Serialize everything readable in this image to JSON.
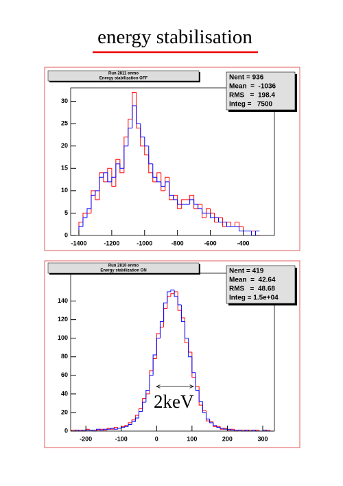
{
  "title": "energy stabilisation",
  "chart_data": [
    {
      "type": "histogram",
      "title_box": [
        "Run 2811 enmo",
        "Energy stabilization OFF"
      ],
      "stats": [
        "Nent = 936",
        "Mean  =  -1036",
        "RMS   =  198.4",
        "Integ =   7500"
      ],
      "bins": [
        -1400,
        -1375,
        -1350,
        -1325,
        -1300,
        -1275,
        -1250,
        -1225,
        -1200,
        -1175,
        -1150,
        -1125,
        -1100,
        -1075,
        -1050,
        -1025,
        -1000,
        -975,
        -950,
        -925,
        -900,
        -875,
        -850,
        -825,
        -800,
        -775,
        -750,
        -725,
        -700,
        -675,
        -650,
        -625,
        -600,
        -575,
        -550,
        -525,
        -500,
        -475,
        -450,
        -425,
        -400,
        -375,
        -350,
        -325,
        -300
      ],
      "series": [
        {
          "color": "#ff0000",
          "values": [
            3,
            5,
            5,
            10,
            8,
            14,
            12,
            15,
            11,
            17,
            14,
            22,
            26,
            32,
            24,
            20,
            18,
            14,
            12,
            14,
            10,
            13,
            8,
            9,
            6,
            8,
            8,
            9,
            6,
            7,
            4,
            6,
            5,
            3,
            4,
            2,
            3,
            2,
            3,
            2,
            1,
            1,
            1,
            0
          ]
        },
        {
          "color": "#0000ff",
          "values": [
            2,
            4,
            6,
            9,
            10,
            13,
            14,
            12,
            13,
            16,
            15,
            20,
            24,
            29,
            25,
            22,
            20,
            16,
            13,
            12,
            11,
            12,
            9,
            8,
            7,
            7,
            7,
            8,
            7,
            6,
            5,
            5,
            4,
            4,
            3,
            3,
            2,
            2,
            2,
            1,
            1,
            1,
            0,
            1
          ]
        }
      ],
      "xlim": [
        -1450,
        -210
      ],
      "xticks": [
        -1400,
        -1200,
        -1000,
        -800,
        -600,
        -400
      ],
      "ylim": [
        0,
        33
      ],
      "yticks": [
        0,
        5,
        10,
        15,
        20,
        25,
        30
      ]
    },
    {
      "type": "histogram",
      "title_box": [
        "Run 2810 enmo",
        "Energy stabilization ON"
      ],
      "stats": [
        "Nent = 419",
        "Mean  =  42.64",
        "RMS   =  48.68",
        "Integ = 1.5e+04"
      ],
      "annotation": "2keV",
      "bins": [
        -240,
        -230,
        -220,
        -210,
        -200,
        -190,
        -180,
        -170,
        -160,
        -150,
        -140,
        -130,
        -120,
        -110,
        -100,
        -90,
        -80,
        -70,
        -60,
        -50,
        -40,
        -30,
        -20,
        -10,
        0,
        10,
        20,
        30,
        40,
        50,
        60,
        70,
        80,
        90,
        100,
        110,
        120,
        130,
        140,
        150,
        160,
        170,
        180,
        190,
        200,
        210,
        220,
        230,
        240,
        250,
        260,
        270,
        280,
        290,
        300,
        310,
        320,
        330
      ],
      "series": [
        {
          "color": "#ff0000",
          "values": [
            1,
            0,
            1,
            0,
            2,
            1,
            0,
            1,
            2,
            1,
            3,
            2,
            4,
            3,
            5,
            6,
            9,
            12,
            17,
            24,
            35,
            40,
            65,
            78,
            105,
            112,
            132,
            145,
            148,
            150,
            130,
            122,
            95,
            85,
            58,
            48,
            28,
            22,
            11,
            10,
            5,
            5,
            2,
            3,
            1,
            2,
            0,
            1,
            1,
            0,
            1,
            0,
            1,
            0,
            0,
            1,
            0
          ]
        },
        {
          "color": "#0000ff",
          "values": [
            0,
            1,
            0,
            1,
            1,
            1,
            1,
            2,
            1,
            2,
            2,
            3,
            2,
            3,
            4,
            5,
            7,
            10,
            14,
            21,
            31,
            44,
            60,
            82,
            100,
            118,
            138,
            150,
            152,
            145,
            136,
            118,
            100,
            80,
            63,
            44,
            32,
            20,
            13,
            9,
            6,
            4,
            3,
            2,
            2,
            1,
            1,
            1,
            0,
            1,
            0,
            1,
            0,
            0,
            1,
            0,
            0
          ]
        }
      ],
      "xlim": [
        -243,
        333
      ],
      "xticks": [
        -200,
        -100,
        0,
        100,
        200,
        300
      ],
      "ylim": [
        0,
        170
      ],
      "yticks": [
        0,
        20,
        40,
        60,
        80,
        100,
        120,
        140
      ]
    }
  ]
}
